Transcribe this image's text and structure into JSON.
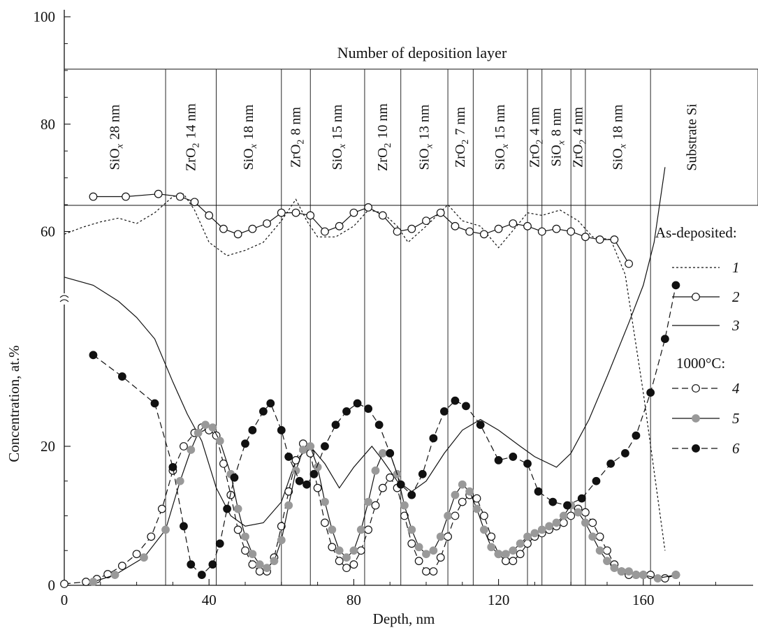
{
  "chart_data": {
    "type": "line",
    "xlabel": "Depth, nm",
    "ylabel": "Concentration, at.%",
    "xlim": [
      0,
      185
    ],
    "x_ticks": [
      0,
      40,
      80,
      120,
      160
    ],
    "y_ticks": [
      0,
      20,
      60,
      80,
      100
    ],
    "axis_break_between": [
      20,
      60
    ],
    "grid": false,
    "legend_position": "right",
    "layers_header": "Number of deposition layer",
    "layers": [
      {
        "material": "SiO",
        "sub": "x",
        "thickness": "28 nm",
        "from": 0,
        "to": 28
      },
      {
        "material": "ZrO",
        "sub": "2",
        "thickness": "14 nm",
        "from": 28,
        "to": 42
      },
      {
        "material": "SiO",
        "sub": "x",
        "thickness": "18 nm",
        "from": 42,
        "to": 60
      },
      {
        "material": "ZrO",
        "sub": "2",
        "thickness": "8 nm",
        "from": 60,
        "to": 68
      },
      {
        "material": "SiO",
        "sub": "x",
        "thickness": "15 nm",
        "from": 68,
        "to": 83
      },
      {
        "material": "ZrO",
        "sub": "2",
        "thickness": "10 nm",
        "from": 83,
        "to": 93
      },
      {
        "material": "SiO",
        "sub": "x",
        "thickness": "13 nm",
        "from": 93,
        "to": 106
      },
      {
        "material": "ZrO",
        "sub": "2",
        "thickness": "7 nm",
        "from": 106,
        "to": 113
      },
      {
        "material": "SiO",
        "sub": "x",
        "thickness": "15 nm",
        "from": 113,
        "to": 128
      },
      {
        "material": "ZrO",
        "sub": "2",
        "thickness": "4 nm",
        "from": 128,
        "to": 132
      },
      {
        "material": "SiO",
        "sub": "x",
        "thickness": "8 nm",
        "from": 132,
        "to": 140
      },
      {
        "material": "ZrO",
        "sub": "2",
        "thickness": "4 nm",
        "from": 140,
        "to": 144
      },
      {
        "material": "SiO",
        "sub": "x",
        "thickness": "18 nm",
        "from": 144,
        "to": 162
      },
      {
        "material": "Substrate Si",
        "sub": "",
        "thickness": "",
        "from": 162,
        "to": 185
      }
    ],
    "legend": {
      "group1_title": "As-deposited:",
      "group2_title": "1000°C:"
    },
    "series": [
      {
        "name": "1",
        "group": "As-deposited",
        "style": "dotted-line",
        "color": "#111111",
        "x": [
          0,
          5,
          10,
          15,
          20,
          25,
          30,
          33,
          36,
          40,
          45,
          50,
          55,
          60,
          64,
          67,
          70,
          75,
          80,
          84,
          88,
          92,
          95,
          100,
          106,
          110,
          115,
          120,
          125,
          128,
          132,
          137,
          142,
          146,
          151,
          155,
          160,
          166
        ],
        "y": [
          59.5,
          60.8,
          61.8,
          62.5,
          61.5,
          63.5,
          66.5,
          67.0,
          64.0,
          58.0,
          55.5,
          56.5,
          58.0,
          62.0,
          66.0,
          62.0,
          59.0,
          59.0,
          61.0,
          64.0,
          63.5,
          61.0,
          58.0,
          61.0,
          65.0,
          62.0,
          61.0,
          57.0,
          61.0,
          63.5,
          63.0,
          64.0,
          62.0,
          59.0,
          58.5,
          52.0,
          30.0,
          5.0
        ]
      },
      {
        "name": "2",
        "group": "As-deposited",
        "style": "line-open-circles",
        "color": "#111111",
        "x": [
          8,
          17,
          26,
          32,
          36,
          40,
          44,
          48,
          52,
          56,
          60,
          64,
          68,
          72,
          76,
          80,
          84,
          88,
          92,
          96,
          100,
          104,
          108,
          112,
          116,
          120,
          124,
          128,
          132,
          136,
          140,
          144,
          148,
          152,
          156
        ],
        "y": [
          66.5,
          66.5,
          67.0,
          66.5,
          65.5,
          63.0,
          60.5,
          59.5,
          60.5,
          61.5,
          63.5,
          63.5,
          63.0,
          60.0,
          61.0,
          63.5,
          64.5,
          63.0,
          60.0,
          60.5,
          62.0,
          63.5,
          61.0,
          60.0,
          59.5,
          60.5,
          61.5,
          61.0,
          60.0,
          60.5,
          60.0,
          59.0,
          58.5,
          58.5,
          54.0
        ]
      },
      {
        "name": "3",
        "group": "As-deposited",
        "style": "solid-line",
        "color": "#111111",
        "x": [
          0,
          8,
          15,
          20,
          25,
          30,
          34,
          38,
          42,
          46,
          50,
          55,
          60,
          64,
          68,
          72,
          76,
          80,
          85,
          88,
          92,
          96,
          100,
          105,
          110,
          115,
          120,
          126,
          130,
          136,
          140,
          145,
          150,
          156,
          160,
          163,
          166
        ],
        "y": [
          51.5,
          50.0,
          47.0,
          44.0,
          40.0,
          32.0,
          26.0,
          21.0,
          14.0,
          10.0,
          8.5,
          9.0,
          12.0,
          18.0,
          20.0,
          17.5,
          14.0,
          17.0,
          20.0,
          18.0,
          15.0,
          13.5,
          15.0,
          19.0,
          23.0,
          25.0,
          23.0,
          20.0,
          18.5,
          17.0,
          19.0,
          25.0,
          33.0,
          43.0,
          50.0,
          58.0,
          72.0
        ]
      },
      {
        "name": "4",
        "group": "1000°C",
        "style": "dashed-line-open-circles",
        "color": "#111111",
        "x": [
          0,
          6,
          9,
          12,
          16,
          20,
          24,
          27,
          30,
          33,
          36,
          38,
          40,
          42,
          44,
          46,
          48,
          50,
          52,
          54,
          56,
          58,
          60,
          62,
          64,
          66,
          68,
          70,
          72,
          74,
          76,
          78,
          80,
          82,
          84,
          86,
          88,
          90,
          92,
          94,
          96,
          98,
          100,
          102,
          104,
          106,
          108,
          110,
          112,
          114,
          116,
          118,
          120,
          122,
          124,
          126,
          128,
          130,
          132,
          134,
          136,
          138,
          140,
          142,
          144,
          146,
          148,
          150,
          152,
          154,
          156,
          158,
          160,
          162,
          166,
          169
        ],
        "y": [
          0.2,
          0.5,
          0.9,
          1.6,
          2.8,
          4.5,
          7.0,
          11.0,
          16.5,
          20.0,
          22.5,
          23.5,
          23.0,
          22.0,
          17.5,
          13.0,
          8.0,
          5.0,
          3.0,
          2.0,
          2.0,
          4.0,
          8.5,
          13.5,
          18.0,
          20.5,
          19.0,
          14.0,
          9.0,
          5.5,
          3.5,
          2.5,
          3.0,
          5.0,
          8.0,
          11.5,
          14.0,
          15.5,
          14.0,
          10.0,
          6.0,
          3.5,
          2.0,
          2.0,
          4.0,
          7.0,
          10.0,
          12.0,
          13.0,
          12.5,
          10.0,
          7.0,
          4.5,
          3.5,
          3.5,
          4.5,
          6.0,
          7.0,
          7.5,
          8.0,
          8.5,
          9.0,
          10.0,
          11.0,
          10.5,
          9.0,
          7.0,
          5.0,
          3.0,
          2.0,
          1.5,
          1.5,
          1.5,
          1.5,
          1.0,
          1.5
        ]
      },
      {
        "name": "5",
        "group": "1000°C",
        "style": "solid-line-gray-circles",
        "color": "#9a9a9a",
        "x": [
          8,
          14,
          22,
          28,
          32,
          35,
          37,
          39,
          41,
          43,
          46,
          48,
          50,
          52,
          54,
          56,
          58,
          60,
          62,
          64,
          66,
          68,
          70,
          72,
          74,
          76,
          78,
          80,
          82,
          84,
          86,
          88,
          90,
          92,
          94,
          96,
          98,
          100,
          102,
          104,
          106,
          108,
          110,
          112,
          114,
          116,
          118,
          120,
          122,
          124,
          126,
          128,
          130,
          132,
          134,
          136,
          138,
          140,
          142,
          144,
          146,
          148,
          150,
          152,
          154,
          156,
          158,
          160,
          164,
          169
        ],
        "y": [
          0.5,
          1.5,
          4.0,
          8.0,
          15.0,
          19.5,
          22.5,
          24.0,
          23.5,
          21.0,
          16.0,
          11.0,
          7.0,
          4.5,
          3.0,
          2.5,
          3.5,
          6.5,
          11.5,
          16.5,
          19.5,
          20.0,
          17.0,
          12.0,
          8.0,
          5.0,
          4.0,
          5.0,
          8.0,
          12.0,
          16.5,
          19.0,
          19.0,
          16.0,
          11.5,
          8.0,
          5.5,
          4.5,
          5.0,
          7.0,
          10.0,
          13.0,
          14.5,
          13.5,
          11.0,
          8.0,
          5.5,
          4.5,
          4.5,
          5.0,
          6.0,
          7.0,
          7.5,
          8.0,
          8.5,
          9.0,
          10.0,
          11.5,
          10.5,
          9.0,
          7.0,
          5.0,
          3.5,
          2.5,
          2.0,
          2.0,
          1.5,
          1.5,
          1.0,
          1.5
        ]
      },
      {
        "name": "6",
        "group": "1000°C",
        "style": "dashed-line-black-circles",
        "color": "#111111",
        "x": [
          8,
          16,
          25,
          30,
          33,
          35,
          38,
          41,
          43,
          45,
          47,
          50,
          52,
          55,
          57,
          60,
          62,
          65,
          67,
          69,
          72,
          75,
          78,
          81,
          84,
          87,
          90,
          93,
          96,
          99,
          102,
          105,
          108,
          111,
          115,
          120,
          124,
          128,
          131,
          135,
          139,
          143,
          147,
          151,
          155,
          158,
          162,
          166,
          169
        ],
        "y": [
          37.0,
          33.0,
          28.0,
          17.0,
          8.5,
          3.0,
          1.5,
          3.0,
          6.0,
          11.0,
          15.5,
          20.5,
          23.0,
          26.5,
          28.0,
          23.0,
          18.5,
          15.0,
          14.5,
          16.0,
          20.0,
          24.0,
          26.5,
          28.0,
          27.0,
          24.0,
          19.0,
          14.5,
          13.0,
          16.0,
          21.5,
          26.5,
          28.5,
          27.5,
          24.0,
          18.0,
          18.5,
          17.5,
          13.5,
          12.0,
          11.5,
          12.5,
          15.0,
          17.5,
          19.0,
          22.0,
          30.0,
          40.0,
          50.0
        ]
      }
    ]
  }
}
